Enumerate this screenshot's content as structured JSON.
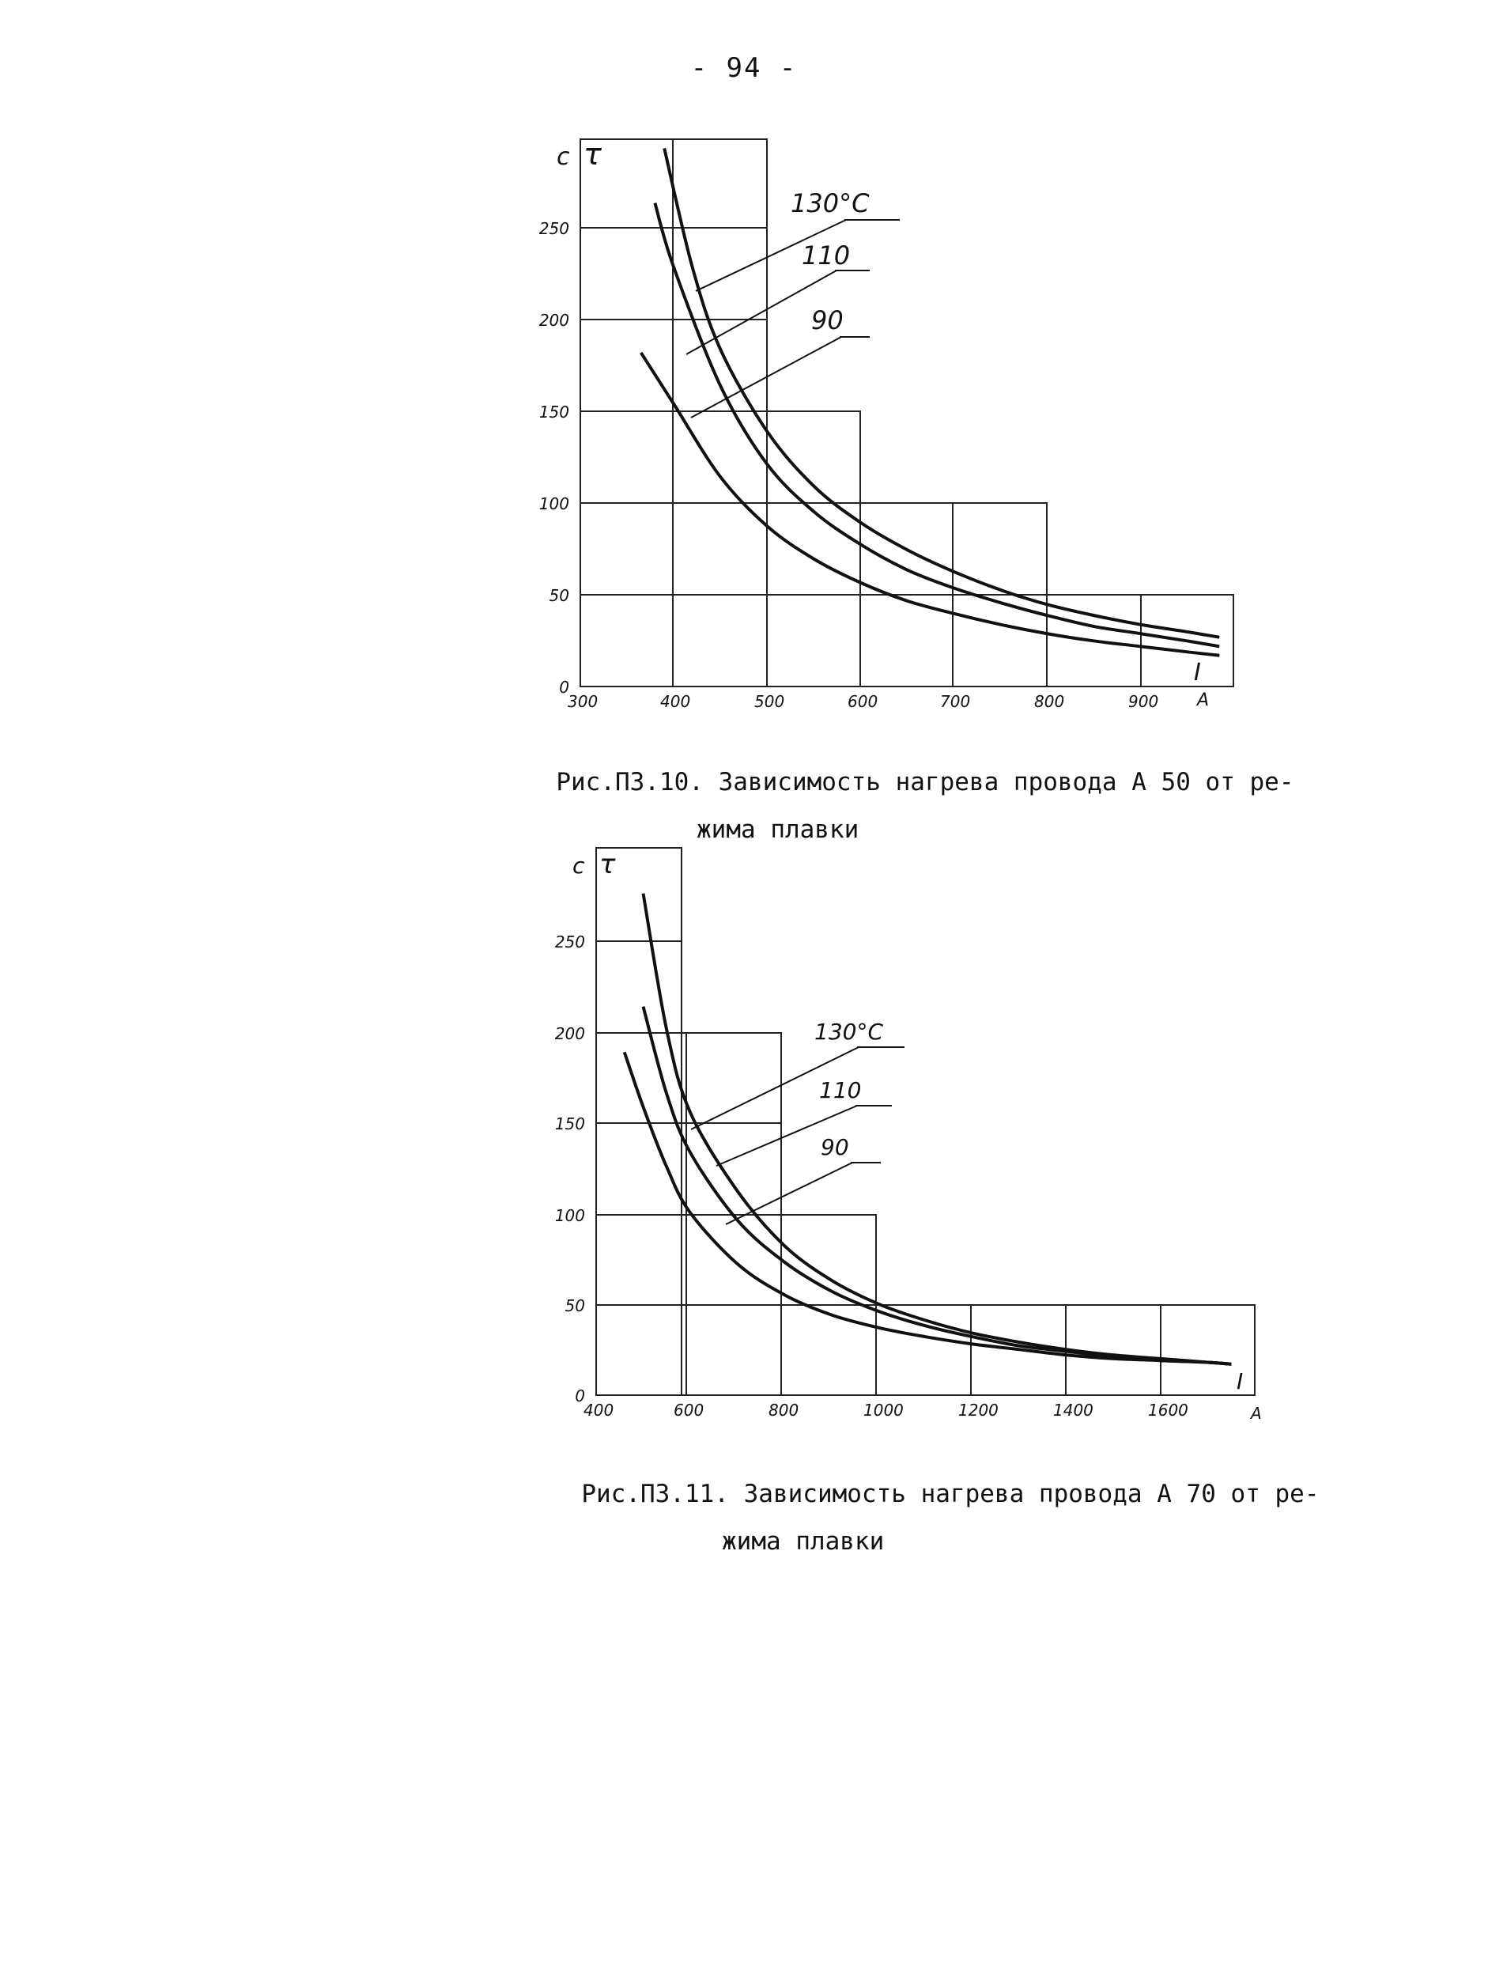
{
  "page": {
    "number": "- 94 -"
  },
  "chart_data": [
    {
      "type": "line",
      "axis_symbols": {
        "unit": "с",
        "symbol": "τ"
      },
      "y_ticks": [
        "0",
        "50",
        "100",
        "150",
        "200",
        "250"
      ],
      "x_ticks": [
        "300",
        "400",
        "500",
        "600",
        "700",
        "800",
        "900"
      ],
      "x_unit": "А",
      "x_symbol": "I",
      "xlim": [
        300,
        1000
      ],
      "ylim": [
        0,
        300
      ],
      "grid": true,
      "series": [
        {
          "name": "130°С",
          "x": [
            390,
            420,
            450,
            500,
            550,
            600,
            650,
            700,
            750,
            800,
            850,
            900,
            950,
            985
          ],
          "y": [
            295,
            230,
            185,
            140,
            110,
            90,
            75,
            63,
            53,
            45,
            39,
            34,
            30,
            27
          ]
        },
        {
          "name": "110",
          "x": [
            380,
            400,
            450,
            500,
            550,
            600,
            650,
            700,
            750,
            800,
            850,
            900,
            950,
            985
          ],
          "y": [
            265,
            230,
            165,
            122,
            96,
            78,
            64,
            54,
            46,
            39,
            33,
            29,
            25,
            22
          ]
        },
        {
          "name": "90",
          "x": [
            365,
            400,
            450,
            500,
            550,
            600,
            650,
            700,
            750,
            800,
            850,
            900,
            950,
            985
          ],
          "y": [
            183,
            155,
            115,
            88,
            70,
            57,
            47,
            40,
            34,
            29,
            25,
            22,
            19,
            17
          ]
        }
      ]
    },
    {
      "type": "line",
      "axis_symbols": {
        "unit": "с",
        "symbol": "τ"
      },
      "y_ticks": [
        "0",
        "50",
        "100",
        "150",
        "200",
        "250"
      ],
      "x_ticks": [
        "400",
        "600",
        "800",
        "1000",
        "1200",
        "1400",
        "1600"
      ],
      "x_unit": "А",
      "x_symbol": "I",
      "xlim": [
        400,
        1800
      ],
      "ylim": [
        0,
        300
      ],
      "grid": true,
      "series": [
        {
          "name": "130°С",
          "x": [
            500,
            550,
            600,
            700,
            800,
            900,
            1000,
            1100,
            1200,
            1300,
            1400,
            1500,
            1600,
            1700,
            1750
          ],
          "y": [
            275,
            200,
            155,
            112,
            82,
            63,
            50,
            41,
            34,
            29,
            25,
            22,
            20,
            18,
            17
          ]
        },
        {
          "name": "110",
          "x": [
            500,
            550,
            600,
            700,
            800,
            900,
            1000,
            1100,
            1200,
            1300,
            1400,
            1500,
            1600,
            1700,
            1750
          ],
          "y": [
            213,
            165,
            133,
            96,
            73,
            57,
            46,
            38,
            32,
            27,
            24,
            21,
            19,
            18,
            17
          ]
        },
        {
          "name": "90",
          "x": [
            460,
            500,
            550,
            600,
            700,
            800,
            900,
            1000,
            1100,
            1200,
            1300,
            1400,
            1500,
            1600,
            1700,
            1750
          ],
          "y": [
            188,
            158,
            125,
            100,
            72,
            55,
            44,
            37,
            32,
            28,
            25,
            22,
            20,
            19,
            18,
            17
          ]
        }
      ]
    }
  ],
  "captions": [
    {
      "line1": "Рис.П3.10. Зависимость нагрева провода А 50 от ре-",
      "line2": "жима плавки"
    },
    {
      "line1": "Рис.П3.11. Зависимость нагрева провода А 70 от ре-",
      "line2": "жима плавки"
    }
  ]
}
